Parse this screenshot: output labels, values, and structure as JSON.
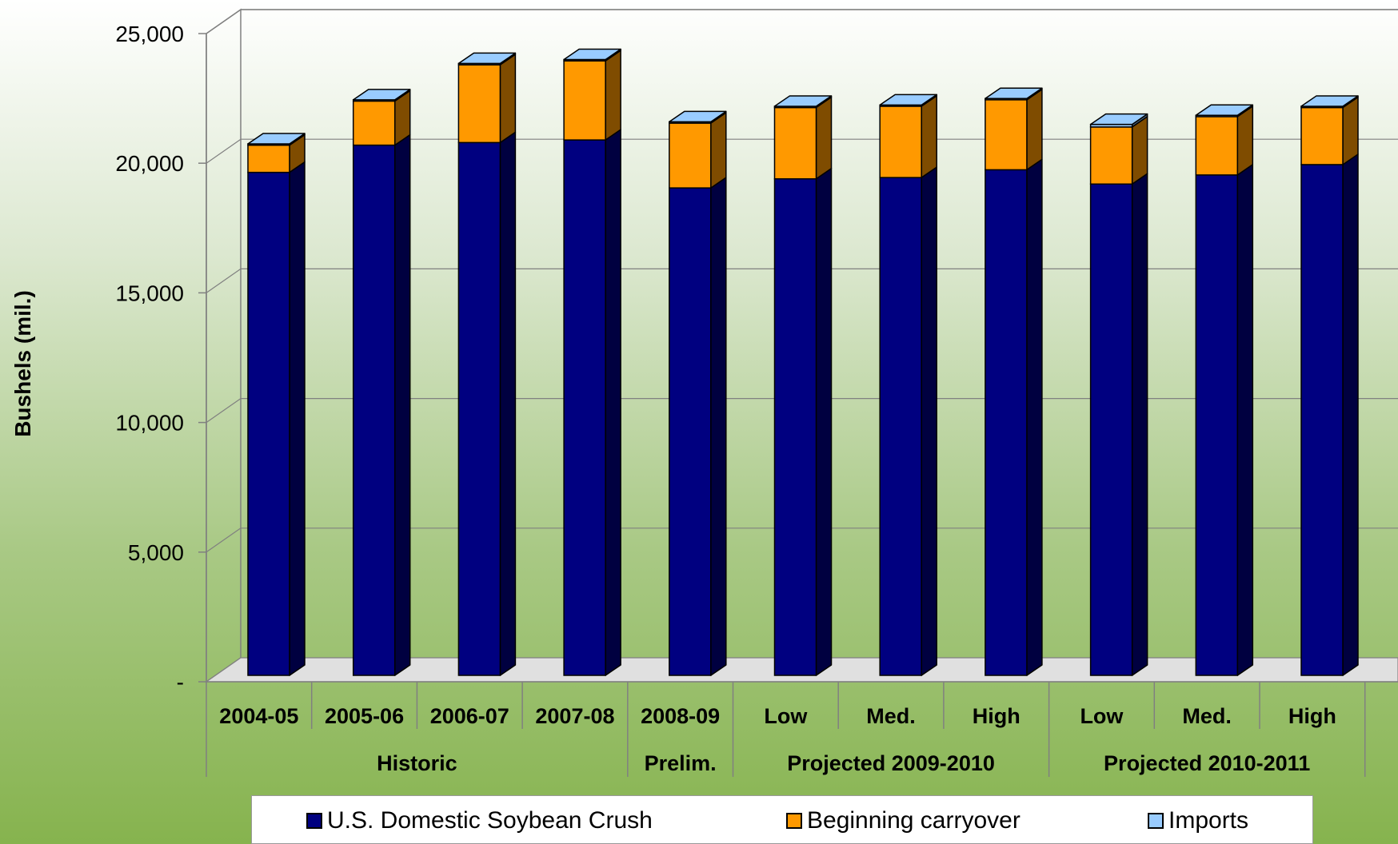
{
  "chart_data": {
    "type": "bar",
    "stacked": true,
    "ylabel": "Bushels (mil.)",
    "ylim": [
      0,
      25000
    ],
    "yticks": [
      0,
      5000,
      10000,
      15000,
      20000,
      25000
    ],
    "ytick_labels": [
      "-",
      "5,000",
      "10,000",
      "15,000",
      "20,000",
      "25,000"
    ],
    "grid": true,
    "legend_position": "bottom",
    "categories": [
      "2004-05",
      "2005-06",
      "2006-07",
      "2007-08",
      "2008-09",
      "Low",
      "Med.",
      "High",
      "Low",
      "Med.",
      "High"
    ],
    "groups": [
      {
        "label": "Historic",
        "span": 4
      },
      {
        "label": "Prelim.",
        "span": 1
      },
      {
        "label": "Projected 2009-2010",
        "span": 3
      },
      {
        "label": "Projected 2010-2011",
        "span": 3
      }
    ],
    "series": [
      {
        "name": "U.S. Domestic Soybean Crush",
        "color": "#000080",
        "side_color": "#000040",
        "values": [
          19400,
          20450,
          20550,
          20650,
          18800,
          19150,
          19200,
          19500,
          18950,
          19300,
          19700
        ]
      },
      {
        "name": "Beginning carryover",
        "color": "#FF9900",
        "side_color": "#7F4C00",
        "values": [
          1050,
          1700,
          3000,
          3050,
          2500,
          2750,
          2750,
          2700,
          2200,
          2250,
          2200
        ]
      },
      {
        "name": "Imports",
        "color": "#99CCFF",
        "side_color": "#4C667F",
        "values": [
          50,
          50,
          50,
          50,
          50,
          50,
          50,
          50,
          100,
          50,
          50
        ]
      }
    ]
  }
}
